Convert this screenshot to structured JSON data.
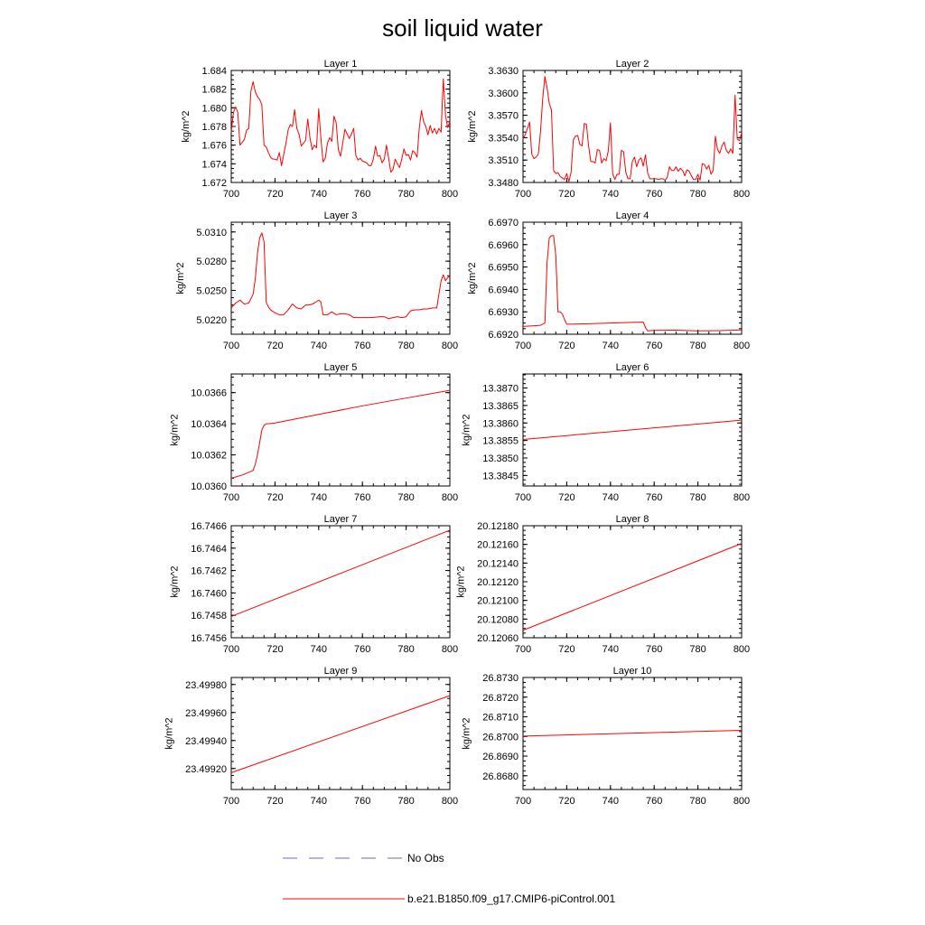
{
  "chart_data": {
    "type": "line",
    "title": "soil liquid water",
    "xlabel": "",
    "legend": [
      {
        "label": "No Obs",
        "color": "#6a6ad8",
        "style": "dashed"
      },
      {
        "label": "b.e21.B1850.f09_g17.CMIP6-piControl.001",
        "color": "#ff0000",
        "style": "solid"
      }
    ],
    "panels": [
      {
        "title": "Layer 1",
        "ylabel": "kg/m^2",
        "xlim": [
          700,
          800
        ],
        "ylim": [
          1.672,
          1.684
        ],
        "xticks": [
          "700",
          "720",
          "740",
          "760",
          "780",
          "800"
        ],
        "yticks": [
          "1.672",
          "1.674",
          "1.676",
          "1.678",
          "1.680",
          "1.682",
          "1.684"
        ],
        "series": [
          {
            "name": "b.e21.B1850.f09_g17.CMIP6-piControl.001",
            "color": "#ff0000",
            "x": [
              700,
              701,
              702,
              703,
              704,
              705,
              706,
              707,
              708,
              709,
              710,
              711,
              712,
              713,
              714,
              715,
              716,
              717,
              718,
              719,
              720,
              721,
              722,
              723,
              724,
              725,
              726,
              727,
              728,
              729,
              730,
              731,
              732,
              733,
              734,
              735,
              736,
              737,
              738,
              739,
              740,
              741,
              742,
              743,
              744,
              745,
              746,
              747,
              748,
              749,
              750,
              751,
              752,
              753,
              754,
              755,
              756,
              757,
              758,
              759,
              760,
              761,
              762,
              763,
              764,
              765,
              766,
              767,
              768,
              769,
              770,
              771,
              772,
              773,
              774,
              775,
              776,
              777,
              778,
              779,
              780,
              781,
              782,
              783,
              784,
              785,
              786,
              787,
              788,
              789,
              790,
              791,
              792,
              793,
              794,
              795,
              796,
              797,
              798,
              799,
              800
            ],
            "y": [
              1.6774,
              1.6795,
              1.6801,
              1.6795,
              1.676,
              1.6763,
              1.6766,
              1.6776,
              1.6778,
              1.6818,
              1.6828,
              1.6817,
              1.6812,
              1.6809,
              1.6803,
              1.676,
              1.6758,
              1.6752,
              1.6747,
              1.6745,
              1.6745,
              1.6744,
              1.6752,
              1.6738,
              1.675,
              1.6762,
              1.6776,
              1.6782,
              1.678,
              1.6798,
              1.6778,
              1.6772,
              1.6759,
              1.6762,
              1.6765,
              1.6788,
              1.6768,
              1.6755,
              1.676,
              1.6757,
              1.6799,
              1.6768,
              1.6742,
              1.6746,
              1.6762,
              1.6768,
              1.6764,
              1.6791,
              1.6784,
              1.6755,
              1.6748,
              1.6762,
              1.6777,
              1.6772,
              1.6767,
              1.6772,
              1.6778,
              1.6749,
              1.6744,
              1.6746,
              1.6743,
              1.6742,
              1.6741,
              1.6738,
              1.6738,
              1.6745,
              1.6759,
              1.6748,
              1.6749,
              1.6741,
              1.6745,
              1.676,
              1.6746,
              1.6731,
              1.6734,
              1.6745,
              1.674,
              1.6736,
              1.6745,
              1.6756,
              1.6749,
              1.675,
              1.6744,
              1.6754,
              1.6752,
              1.6747,
              1.6778,
              1.6797,
              1.6785,
              1.678,
              1.6771,
              1.6781,
              1.6773,
              1.6778,
              1.6772,
              1.6778,
              1.6774,
              1.6831,
              1.6792,
              1.6779,
              1.6785
            ]
          }
        ]
      },
      {
        "title": "Layer 2",
        "ylabel": "kg/m^2",
        "xlim": [
          700,
          800
        ],
        "ylim": [
          3.348,
          3.363
        ],
        "xticks": [
          "700",
          "720",
          "740",
          "760",
          "780",
          "800"
        ],
        "yticks": [
          "3.3480",
          "3.3510",
          "3.3540",
          "3.3570",
          "3.3600",
          "3.3630"
        ],
        "series": [
          {
            "name": "b.e21.B1850.f09_g17.CMIP6-piControl.001",
            "color": "#ff0000",
            "x": [
              700,
              701,
              702,
              703,
              704,
              705,
              706,
              707,
              708,
              709,
              710,
              711,
              712,
              713,
              714,
              715,
              716,
              717,
              718,
              719,
              720,
              721,
              722,
              723,
              724,
              725,
              726,
              727,
              728,
              729,
              730,
              731,
              732,
              733,
              734,
              735,
              736,
              737,
              738,
              739,
              740,
              741,
              742,
              743,
              744,
              745,
              746,
              747,
              748,
              749,
              750,
              751,
              752,
              753,
              754,
              755,
              756,
              757,
              758,
              759,
              760,
              761,
              762,
              763,
              764,
              765,
              766,
              767,
              768,
              769,
              770,
              771,
              772,
              773,
              774,
              775,
              776,
              777,
              778,
              779,
              780,
              781,
              782,
              783,
              784,
              785,
              786,
              787,
              788,
              789,
              790,
              791,
              792,
              793,
              794,
              795,
              796,
              797,
              798,
              799,
              800
            ],
            "y": [
              3.3538,
              3.3544,
              3.3552,
              3.3561,
              3.3518,
              3.3512,
              3.3514,
              3.3518,
              3.3548,
              3.3592,
              3.3622,
              3.3607,
              3.3586,
              3.3577,
              3.3496,
              3.3492,
              3.3493,
              3.3488,
              3.3486,
              3.3484,
              3.3492,
              3.3481,
              3.3494,
              3.3537,
              3.3542,
              3.3543,
              3.3531,
              3.3529,
              3.3559,
              3.3558,
              3.3529,
              3.3508,
              3.3508,
              3.3506,
              3.3524,
              3.3523,
              3.3506,
              3.3512,
              3.3509,
              3.3522,
              3.356,
              3.3492,
              3.3484,
              3.3491,
              3.3491,
              3.3523,
              3.3521,
              3.3494,
              3.3485,
              3.3485,
              3.3508,
              3.3514,
              3.3501,
              3.351,
              3.3513,
              3.3502,
              3.3517,
              3.3493,
              3.3485,
              3.3485,
              3.3485,
              3.3485,
              3.3484,
              3.3485,
              3.3485,
              3.3483,
              3.3487,
              3.3501,
              3.3496,
              3.3496,
              3.3501,
              3.3495,
              3.3499,
              3.3496,
              3.3489,
              3.3497,
              3.3495,
              3.3489,
              3.3484,
              3.3484,
              3.3491,
              3.3483,
              3.3505,
              3.3504,
              3.3498,
              3.3503,
              3.3491,
              3.3496,
              3.3542,
              3.3524,
              3.3519,
              3.3529,
              3.3534,
              3.3523,
              3.3519,
              3.3525,
              3.3519,
              3.3597,
              3.3538,
              3.3536,
              3.3547
            ]
          }
        ]
      },
      {
        "title": "Layer 3",
        "ylabel": "kg/m^2",
        "xlim": [
          700,
          800
        ],
        "ylim": [
          5.0205,
          5.032
        ],
        "xticks": [
          "700",
          "720",
          "740",
          "760",
          "780",
          "800"
        ],
        "yticks": [
          "5.0220",
          "5.0250",
          "5.0280",
          "5.0310"
        ],
        "series": [
          {
            "name": "b.e21.B1850.f09_g17.CMIP6-piControl.001",
            "color": "#ff0000",
            "x": [
              700,
              702,
              704,
              706,
              708,
              710,
              711,
              712,
              713,
              714,
              715,
              716,
              717,
              718,
              720,
              722,
              724,
              726,
              728,
              730,
              732,
              734,
              736,
              738,
              740,
              741,
              742,
              744,
              746,
              748,
              750,
              752,
              754,
              756,
              758,
              760,
              764,
              768,
              770,
              772,
              774,
              776,
              778,
              780,
              782,
              784,
              786,
              788,
              790,
              792,
              794,
              796,
              797,
              798,
              799,
              800
            ],
            "y": [
              5.0232,
              5.0237,
              5.024,
              5.0236,
              5.0237,
              5.0246,
              5.0262,
              5.0288,
              5.0304,
              5.0309,
              5.03,
              5.0238,
              5.0233,
              5.023,
              5.0227,
              5.0225,
              5.0225,
              5.023,
              5.0236,
              5.0232,
              5.0231,
              5.0235,
              5.0235,
              5.0237,
              5.024,
              5.0238,
              5.0225,
              5.0225,
              5.0228,
              5.0225,
              5.0226,
              5.0226,
              5.0225,
              5.0222,
              5.0222,
              5.0222,
              5.0222,
              5.0223,
              5.0223,
              5.0221,
              5.0222,
              5.0223,
              5.0222,
              5.0223,
              5.0229,
              5.023,
              5.023,
              5.0231,
              5.0231,
              5.0232,
              5.0232,
              5.026,
              5.0266,
              5.026,
              5.0263,
              5.0265
            ]
          }
        ]
      },
      {
        "title": "Layer 4",
        "ylabel": "kg/m^2",
        "xlim": [
          700,
          800
        ],
        "ylim": [
          6.692,
          6.697
        ],
        "xticks": [
          "700",
          "720",
          "740",
          "760",
          "780",
          "800"
        ],
        "yticks": [
          "6.6920",
          "6.6930",
          "6.6940",
          "6.6950",
          "6.6960",
          "6.6970"
        ],
        "series": [
          {
            "name": "b.e21.B1850.f09_g17.CMIP6-piControl.001",
            "color": "#ff0000",
            "x": [
              700,
              705,
              708,
              710,
              711,
              712,
              713,
              714,
              715,
              716,
              717,
              718,
              719,
              720,
              722,
              730,
              740,
              750,
              755,
              756,
              757,
              760,
              770,
              780,
              790,
              800
            ],
            "y": [
              6.69235,
              6.69238,
              6.6924,
              6.6925,
              6.6952,
              6.6963,
              6.6964,
              6.6964,
              6.6955,
              6.693,
              6.693,
              6.6929,
              6.69265,
              6.69245,
              6.69245,
              6.69247,
              6.6925,
              6.69253,
              6.69254,
              6.6923,
              6.69215,
              6.69217,
              6.69218,
              6.69215,
              6.69216,
              6.69219
            ]
          }
        ]
      },
      {
        "title": "Layer 5",
        "ylabel": "kg/m^2",
        "xlim": [
          700,
          800
        ],
        "ylim": [
          10.036,
          10.03672
        ],
        "xticks": [
          "700",
          "720",
          "740",
          "760",
          "780",
          "800"
        ],
        "yticks": [
          "10.0360",
          "10.0362",
          "10.0364",
          "10.0366"
        ],
        "series": [
          {
            "name": "b.e21.B1850.f09_g17.CMIP6-piControl.001",
            "color": "#ff0000",
            "x": [
              700,
              705,
              710,
              711,
              712,
              713,
              714,
              715,
              716,
              717,
              720,
              740,
              760,
              780,
              800
            ],
            "y": [
              10.03605,
              10.03607,
              10.0361,
              10.03614,
              10.0362,
              10.03628,
              10.03636,
              10.03639,
              10.0364,
              10.0364,
              10.036405,
              10.03646,
              10.036515,
              10.036565,
              10.036615
            ]
          }
        ]
      },
      {
        "title": "Layer 6",
        "ylabel": "kg/m^2",
        "xlim": [
          700,
          800
        ],
        "ylim": [
          13.3842,
          13.3874
        ],
        "xticks": [
          "700",
          "720",
          "740",
          "760",
          "780",
          "800"
        ],
        "yticks": [
          "13.3845",
          "13.3850",
          "13.3855",
          "13.3860",
          "13.3865",
          "13.3870"
        ],
        "series": [
          {
            "name": "b.e21.B1850.f09_g17.CMIP6-piControl.001",
            "color": "#ff0000",
            "x": [
              700,
              800
            ],
            "y": [
              13.38553,
              13.38608
            ]
          }
        ]
      },
      {
        "title": "Layer 7",
        "ylabel": "kg/m^2",
        "xlim": [
          700,
          800
        ],
        "ylim": [
          16.7456,
          16.7466
        ],
        "xticks": [
          "700",
          "720",
          "740",
          "760",
          "780",
          "800"
        ],
        "yticks": [
          "16.7456",
          "16.7458",
          "16.7460",
          "16.7462",
          "16.7464",
          "16.7466"
        ],
        "series": [
          {
            "name": "b.e21.B1850.f09_g17.CMIP6-piControl.001",
            "color": "#ff0000",
            "x": [
              700,
              800
            ],
            "y": [
              16.74579,
              16.74656
            ]
          }
        ]
      },
      {
        "title": "Layer 8",
        "ylabel": "kg/m^2",
        "xlim": [
          700,
          800
        ],
        "ylim": [
          20.1206,
          20.1218
        ],
        "xticks": [
          "700",
          "720",
          "740",
          "760",
          "780",
          "800"
        ],
        "yticks": [
          "20.12060",
          "20.12080",
          "20.12100",
          "20.12120",
          "20.12140",
          "20.12160",
          "20.12180"
        ],
        "series": [
          {
            "name": "b.e21.B1850.f09_g17.CMIP6-piControl.001",
            "color": "#ff0000",
            "x": [
              700,
              800
            ],
            "y": [
              20.12068,
              20.12161
            ]
          }
        ]
      },
      {
        "title": "Layer 9",
        "ylabel": "kg/m^2",
        "xlim": [
          700,
          800
        ],
        "ylim": [
          23.49905,
          23.49985
        ],
        "xticks": [
          "700",
          "720",
          "740",
          "760",
          "780",
          "800"
        ],
        "yticks": [
          "23.49920",
          "23.49940",
          "23.49960",
          "23.49980"
        ],
        "series": [
          {
            "name": "b.e21.B1850.f09_g17.CMIP6-piControl.001",
            "color": "#ff0000",
            "x": [
              700,
              800
            ],
            "y": [
              23.49917,
              23.49972
            ]
          }
        ]
      },
      {
        "title": "Layer 10",
        "ylabel": "kg/m^2",
        "xlim": [
          700,
          800
        ],
        "ylim": [
          26.8673,
          26.873
        ],
        "xticks": [
          "700",
          "720",
          "740",
          "760",
          "780",
          "800"
        ],
        "yticks": [
          "26.8680",
          "26.8690",
          "26.8700",
          "26.8710",
          "26.8720",
          "26.8730"
        ],
        "series": [
          {
            "name": "b.e21.B1850.f09_g17.CMIP6-piControl.001",
            "color": "#ff0000",
            "x": [
              700,
              800
            ],
            "y": [
              26.87002,
              26.87031
            ]
          }
        ]
      }
    ]
  }
}
